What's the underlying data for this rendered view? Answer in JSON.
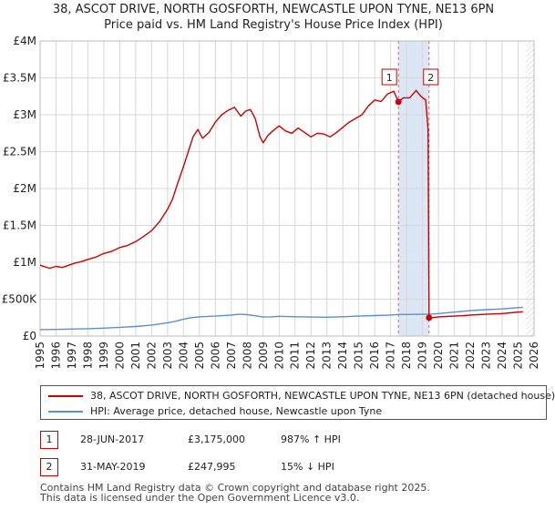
{
  "title": {
    "line1": "38, ASCOT DRIVE, NORTH GOSFORTH, NEWCASTLE UPON TYNE, NE13 6PN",
    "line2": "Price paid vs. HM Land Registry's House Price Index (HPI)"
  },
  "colors": {
    "property": "#cc0000",
    "hpi": "#5b8fd1",
    "grid": "#d8d8d8",
    "marker_dash": "#e06060",
    "shade": "#dce6f5"
  },
  "chart_data": {
    "type": "line",
    "xlim": [
      1995,
      2026
    ],
    "ylim": [
      0,
      4000000
    ],
    "yticks": [
      0,
      500000,
      1000000,
      1500000,
      2000000,
      2500000,
      3000000,
      3500000,
      4000000
    ],
    "ytick_labels": [
      "£0",
      "£500K",
      "£1M",
      "£1.5M",
      "£2M",
      "£2.5M",
      "£3M",
      "£3.5M",
      "£4M"
    ],
    "xticks": [
      "1995",
      "1996",
      "1997",
      "1998",
      "1999",
      "2000",
      "2001",
      "2002",
      "2003",
      "2004",
      "2005",
      "2006",
      "2007",
      "2008",
      "2009",
      "2010",
      "2011",
      "2012",
      "2013",
      "2014",
      "2015",
      "2016",
      "2017",
      "2018",
      "2019",
      "2020",
      "2021",
      "2022",
      "2023",
      "2024",
      "2025",
      "2026"
    ],
    "series": [
      {
        "name": "38, ASCOT DRIVE, NORTH GOSFORTH, NEWCASTLE UPON TYNE, NE13 6PN (detached house)",
        "x": [
          1995.0,
          1995.3,
          1995.6,
          1996.0,
          1996.4,
          1996.8,
          1997.2,
          1997.6,
          1998.0,
          1998.5,
          1999.0,
          1999.5,
          2000.0,
          2000.5,
          2001.0,
          2001.5,
          2002.0,
          2002.5,
          2003.0,
          2003.3,
          2003.6,
          2004.0,
          2004.3,
          2004.6,
          2004.9,
          2005.2,
          2005.6,
          2006.0,
          2006.4,
          2006.8,
          2007.2,
          2007.6,
          2007.9,
          2008.2,
          2008.5,
          2008.8,
          2009.0,
          2009.3,
          2009.6,
          2010.0,
          2010.4,
          2010.8,
          2011.2,
          2011.6,
          2012.0,
          2012.4,
          2012.8,
          2013.2,
          2013.6,
          2014.0,
          2014.4,
          2014.8,
          2015.2,
          2015.6,
          2016.0,
          2016.4,
          2016.8,
          2017.2,
          2017.49,
          2017.8,
          2018.2,
          2018.6,
          2018.9,
          2019.2,
          2019.35,
          2019.41,
          2019.6,
          2020.0,
          2020.5,
          2021.0,
          2021.5,
          2022.0,
          2022.5,
          2023.0,
          2023.5,
          2024.0,
          2024.5,
          2025.0,
          2025.3
        ],
        "values": [
          960000,
          940000,
          920000,
          945000,
          930000,
          960000,
          990000,
          1010000,
          1040000,
          1070000,
          1120000,
          1150000,
          1200000,
          1230000,
          1280000,
          1350000,
          1430000,
          1550000,
          1720000,
          1850000,
          2050000,
          2300000,
          2500000,
          2700000,
          2800000,
          2680000,
          2760000,
          2900000,
          3000000,
          3060000,
          3100000,
          2980000,
          3050000,
          3070000,
          2950000,
          2700000,
          2620000,
          2720000,
          2780000,
          2850000,
          2780000,
          2750000,
          2820000,
          2760000,
          2700000,
          2750000,
          2740000,
          2700000,
          2760000,
          2830000,
          2900000,
          2950000,
          3000000,
          3120000,
          3200000,
          3180000,
          3280000,
          3320000,
          3175000,
          3230000,
          3230000,
          3330000,
          3250000,
          3200000,
          2800000,
          247995,
          250000,
          260000,
          265000,
          270000,
          275000,
          285000,
          290000,
          295000,
          300000,
          305000,
          315000,
          325000,
          330000
        ]
      },
      {
        "name": "HPI: Average price, detached house, Newcastle upon Tyne",
        "x": [
          1995.0,
          1996.0,
          1997.0,
          1998.0,
          1999.0,
          2000.0,
          2001.0,
          2002.0,
          2003.0,
          2003.5,
          2004.0,
          2004.5,
          2005.0,
          2006.0,
          2007.0,
          2007.5,
          2008.0,
          2008.5,
          2009.0,
          2009.5,
          2010.0,
          2011.0,
          2012.0,
          2013.0,
          2014.0,
          2015.0,
          2016.0,
          2017.0,
          2017.5,
          2018.0,
          2019.0,
          2019.5,
          2020.0,
          2021.0,
          2022.0,
          2023.0,
          2024.0,
          2025.0,
          2025.3
        ],
        "values": [
          88000,
          90000,
          95000,
          100000,
          108000,
          118000,
          130000,
          150000,
          180000,
          200000,
          230000,
          250000,
          260000,
          270000,
          285000,
          295000,
          290000,
          275000,
          258000,
          260000,
          268000,
          262000,
          258000,
          256000,
          262000,
          270000,
          278000,
          285000,
          292000,
          292000,
          295000,
          298000,
          305000,
          325000,
          345000,
          358000,
          368000,
          385000,
          390000
        ]
      }
    ],
    "transactions": [
      {
        "label": "1",
        "date": "28-JUN-2017",
        "x": 2017.49,
        "price": "£3,175,000",
        "value": 3175000,
        "hpi_delta": "987% ↑ HPI"
      },
      {
        "label": "2",
        "date": "31-MAY-2019",
        "x": 2019.41,
        "price": "£247,995",
        "value": 247995,
        "hpi_delta": "15% ↓ HPI"
      }
    ]
  },
  "legend": {
    "property_label": "38, ASCOT DRIVE, NORTH GOSFORTH, NEWCASTLE UPON TYNE, NE13 6PN (detached house)",
    "hpi_label": "HPI: Average price, detached house, Newcastle upon Tyne"
  },
  "footer": {
    "line1": "Contains HM Land Registry data © Crown copyright and database right 2025.",
    "line2": "This data is licensed under the Open Government Licence v3.0."
  }
}
